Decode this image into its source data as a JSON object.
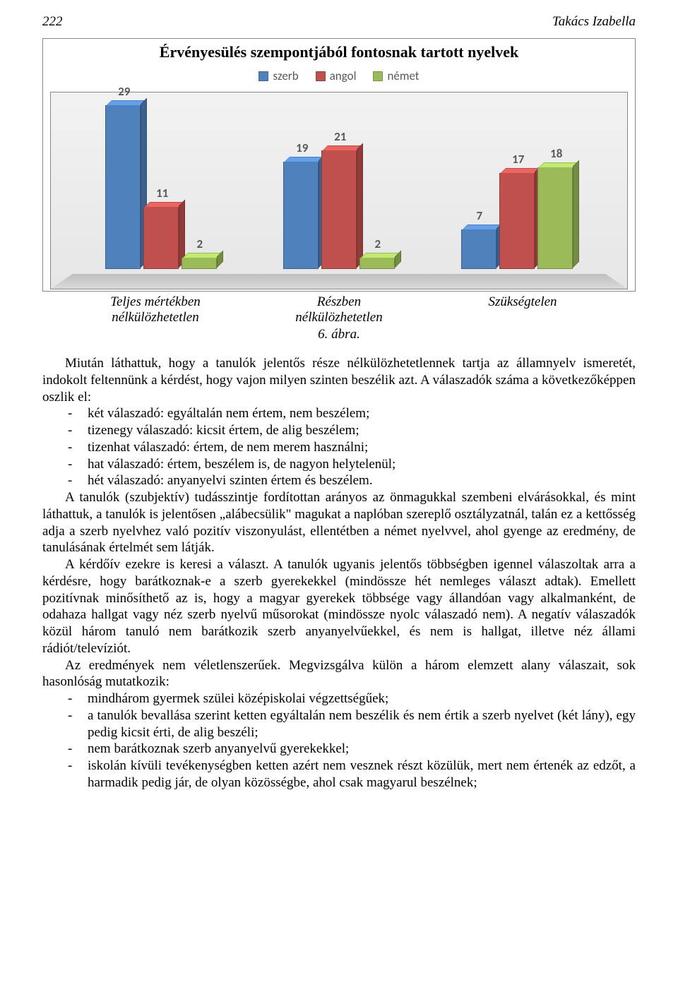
{
  "header": {
    "page_number": "222",
    "author": "Takács Izabella"
  },
  "chart": {
    "type": "bar-3d",
    "title": "Érvényesülés szempontjából fontosnak tartott nyelvek",
    "title_fontsize": 22,
    "legend_fontsize": 17,
    "value_label_fontsize": 17,
    "value_label_color": "#595959",
    "background_gradient": [
      "#f2f2f2",
      "#e6e6e6"
    ],
    "floor_gradient": [
      "#bfbfbf",
      "#d9d9d9"
    ],
    "ylim": [
      0,
      30
    ],
    "series": [
      {
        "name": "szerb",
        "color": "#4f81bd"
      },
      {
        "name": "angol",
        "color": "#c0504d"
      },
      {
        "name": "német",
        "color": "#9bbb59"
      }
    ],
    "categories": [
      {
        "label": "Teljes mértékben nélkülözhetetlen",
        "values": [
          29,
          11,
          2
        ]
      },
      {
        "label": "Részben nélkülözhetetlen",
        "values": [
          19,
          21,
          2
        ]
      },
      {
        "label": "Szükségtelen",
        "values": [
          7,
          17,
          18
        ]
      }
    ],
    "caption": "6. ábra."
  },
  "paragraphs": {
    "p1": "Miután láthattuk, hogy a tanulók jelentős része nélkülözhetetlennek tartja az államnyelv ismeretét, indokolt feltennünk a kérdést, hogy vajon milyen szinten beszélik azt. A válaszadók száma a következőképpen oszlik el:",
    "list1": [
      "két válaszadó: egyáltalán nem értem, nem beszélem;",
      "tizenegy válaszadó: kicsit értem, de alig beszélem;",
      "tizenhat válaszadó: értem, de nem merem használni;",
      "hat válaszadó: értem, beszélem is, de nagyon helytelenül;",
      "hét válaszadó: anyanyelvi szinten értem és beszélem."
    ],
    "p2": "A tanulók (szubjektív) tudásszintje fordítottan arányos az önmagukkal szembeni elvárásokkal, és mint láthattuk, a tanulók is jelentősen „alábecsülik\" magukat a naplóban szereplő osztályzatnál, talán ez a kettősség adja a szerb nyelvhez való pozitív viszonyulást, ellentétben a német nyelvvel, ahol gyenge az eredmény, de tanulásának értelmét sem látják.",
    "p3": "A kérdőív ezekre is keresi a választ. A tanulók ugyanis jelentős többségben igennel válaszoltak arra a kérdésre, hogy barátkoznak-e a szerb gyerekekkel (mindössze hét nemleges választ adtak). Emellett pozitívnak minősíthető az is, hogy a magyar gyerekek többsége vagy állandóan vagy alkalmanként, de odahaza hallgat vagy néz szerb nyelvű műsorokat (mindössze nyolc válaszadó nem). A negatív válaszadók közül három tanuló nem barátkozik szerb anyanyelvűekkel, és nem is hallgat, illetve néz állami rádiót/televíziót.",
    "p4": "Az eredmények nem véletlenszerűek. Megvizsgálva külön a három elemzett alany válaszait, sok hasonlóság mutatkozik:",
    "list2": [
      "mindhárom gyermek szülei középiskolai végzettségűek;",
      "a tanulók bevallása szerint ketten egyáltalán nem beszélik és nem értik a szerb nyelvet (két lány), egy pedig kicsit érti, de alig beszéli;",
      "nem barátkoznak szerb anyanyelvű gyerekekkel;",
      "iskolán kívüli tevékenységben ketten azért nem vesznek részt közülük, mert nem értenék az edzőt, a harmadik pedig jár, de olyan közösségbe, ahol csak magyarul beszélnek;"
    ]
  }
}
